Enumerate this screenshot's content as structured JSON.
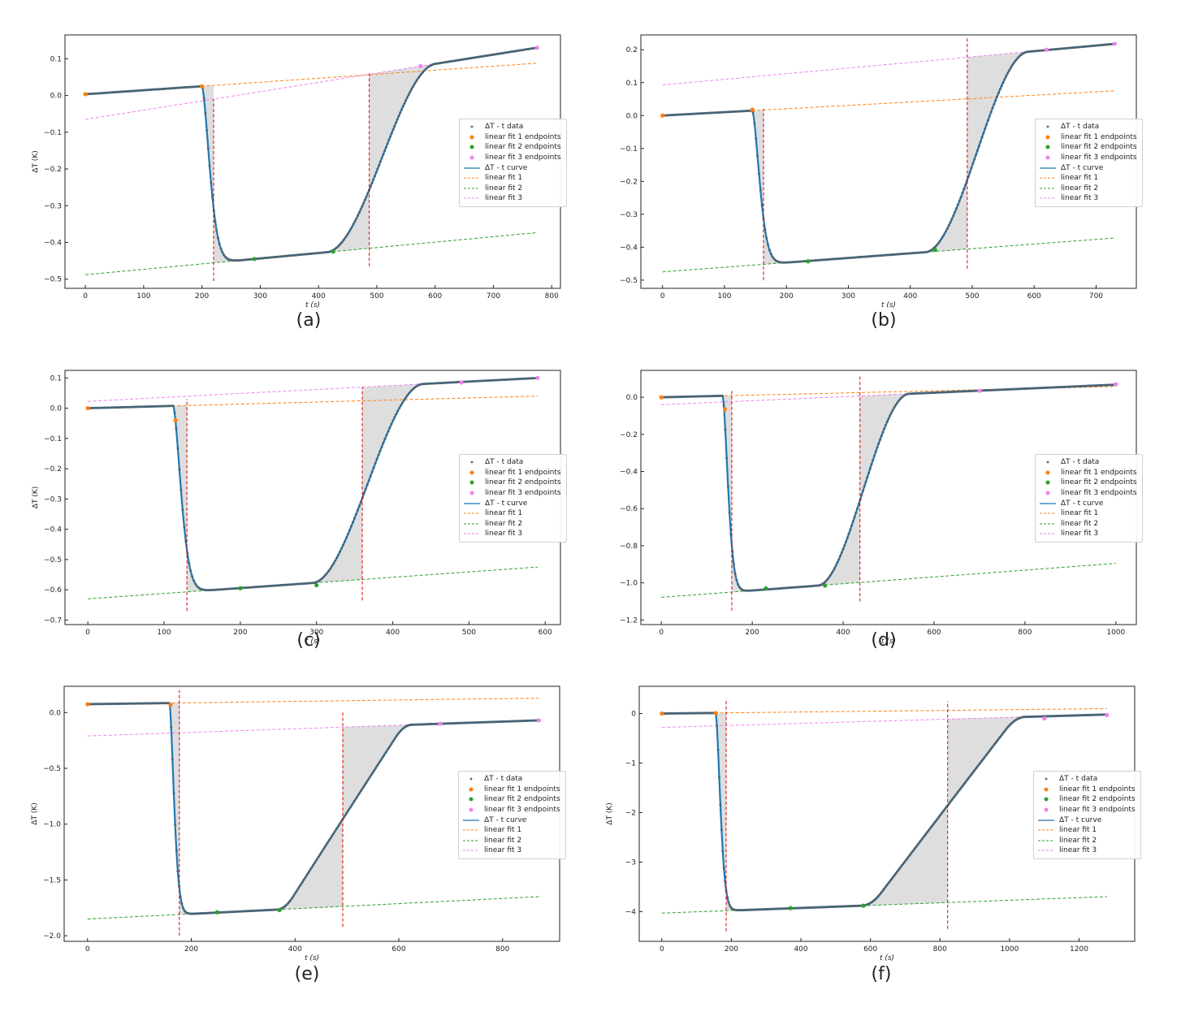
{
  "colors": {
    "data": "#4a6474",
    "curve": "#1f77b4",
    "fit1": "#ff7f0e",
    "fit2": "#2ca02c",
    "fit3": "#ee82ee",
    "vline": "#e00000",
    "shade": "#d3d3d3"
  },
  "legend_labels": {
    "data": "ΔT - t data",
    "fit1_endpoints": "linear fit 1 endpoints",
    "fit2_endpoints": "linear fit 2 endpoints",
    "fit3_endpoints": "linear fit 3 endpoints",
    "curve": "ΔT - t curve",
    "fit1": "linear fit 1",
    "fit2": "linear fit 2",
    "fit3": "linear fit 3"
  },
  "chart_data": [
    {
      "type": "line",
      "caption": "(a)",
      "xlabel": "t (s)",
      "ylabel": "ΔT (K)",
      "xlim": [
        -35,
        815
      ],
      "ylim": [
        -0.525,
        0.165
      ],
      "xticks": [
        0,
        100,
        200,
        300,
        400,
        500,
        600,
        700,
        800
      ],
      "yticks": [
        0.1,
        0.0,
        -0.1,
        -0.2,
        -0.3,
        -0.4,
        -0.5
      ],
      "ytick_labels": [
        "0.1",
        "0.0",
        "−0.1",
        "−0.2",
        "−0.3",
        "−0.4",
        "−0.5"
      ],
      "legend": "center-right",
      "fit1": {
        "slope": 0.000109,
        "intercept": 0.0035,
        "x_end": 775
      },
      "fit2": {
        "slope": 0.000148,
        "intercept": -0.488,
        "x_end": 775
      },
      "fit3": {
        "slope": 0.000252,
        "intercept": -0.065,
        "x_end": 775
      },
      "curve": {
        "t_start": 0,
        "t_end": 775,
        "n_points": 320,
        "t_drop": 200,
        "t_vline1": 220,
        "t_fall_end": 290,
        "t_rise_start": 415,
        "t_vline2": 487,
        "t_rise_end": 600,
        "tau1": 18,
        "tau2": 28,
        "smin": 0.15,
        "shape": "sigmoid"
      },
      "vlines": [
        {
          "x": 220,
          "y_range": [
            -0.505,
            -0.01
          ]
        },
        {
          "x": 487,
          "y_range": [
            -0.465,
            0.06
          ]
        }
      ],
      "endpoints": {
        "fit1": [
          [
            0,
            0.0035
          ],
          [
            200,
            0.025
          ]
        ],
        "fit2": [
          [
            290,
            -0.445
          ],
          [
            425,
            -0.425
          ]
        ],
        "fit3": [
          [
            575,
            0.08
          ],
          [
            775,
            0.13
          ]
        ]
      }
    },
    {
      "type": "line",
      "caption": "(b)",
      "xlabel": "t (s)",
      "ylabel": "",
      "xlim": [
        -35,
        765
      ],
      "ylim": [
        -0.525,
        0.245
      ],
      "xticks": [
        0,
        100,
        200,
        300,
        400,
        500,
        600,
        700
      ],
      "yticks": [
        0.2,
        0.1,
        0.0,
        -0.1,
        -0.2,
        -0.3,
        -0.4,
        -0.5
      ],
      "ytick_labels": [
        "0.2",
        "0.1",
        "0.0",
        "−0.1",
        "−0.2",
        "−0.3",
        "−0.4",
        "−0.5"
      ],
      "legend": "center-right",
      "fit1": {
        "slope": 0.000103,
        "intercept": 0.0,
        "x_end": 730
      },
      "fit2": {
        "slope": 0.000141,
        "intercept": -0.475,
        "x_end": 730
      },
      "fit3": {
        "slope": 0.000171,
        "intercept": 0.093,
        "x_end": 730
      },
      "curve": {
        "t_start": 0,
        "t_end": 730,
        "n_points": 300,
        "t_drop": 145,
        "t_vline1": 163,
        "t_fall_end": 235,
        "t_rise_start": 425,
        "t_vline2": 492,
        "t_rise_end": 590,
        "tau1": 16,
        "tau2": 28,
        "smin": 0.15,
        "shape": "sigmoid"
      },
      "vlines": [
        {
          "x": 163,
          "y_range": [
            -0.5,
            0.02
          ]
        },
        {
          "x": 492,
          "y_range": [
            -0.465,
            0.235
          ]
        }
      ],
      "endpoints": {
        "fit1": [
          [
            0,
            0.0
          ],
          [
            145,
            0.018
          ]
        ],
        "fit2": [
          [
            235,
            -0.443
          ],
          [
            440,
            -0.408
          ]
        ],
        "fit3": [
          [
            620,
            0.2
          ],
          [
            730,
            0.218
          ]
        ]
      }
    },
    {
      "type": "line",
      "caption": "(c)",
      "xlabel": "t (s)",
      "ylabel": "ΔT (K)",
      "xlim": [
        -30,
        620
      ],
      "ylim": [
        -0.715,
        0.125
      ],
      "xticks": [
        0,
        100,
        200,
        300,
        400,
        500,
        600
      ],
      "yticks": [
        0.1,
        0.0,
        -0.1,
        -0.2,
        -0.3,
        -0.4,
        -0.5,
        -0.6,
        -0.7
      ],
      "ytick_labels": [
        "0.1",
        "0.0",
        "−0.1",
        "−0.2",
        "−0.3",
        "−0.4",
        "−0.5",
        "−0.6",
        "−0.7"
      ],
      "legend": "center-right",
      "fit1": {
        "slope": 6.78e-05,
        "intercept": 0.0,
        "x_end": 590
      },
      "fit2": {
        "slope": 0.000178,
        "intercept": -0.63,
        "x_end": 590
      },
      "fit3": {
        "slope": 0.000131,
        "intercept": 0.0225,
        "x_end": 590
      },
      "curve": {
        "t_start": 0,
        "t_end": 590,
        "n_points": 280,
        "t_drop": 112,
        "t_vline1": 130,
        "t_fall_end": 195,
        "t_rise_start": 295,
        "t_vline2": 360,
        "t_rise_end": 440,
        "tau1": 14,
        "tau2": 22,
        "smin": 0.15,
        "shape": "sigmoid"
      },
      "vlines": [
        {
          "x": 130,
          "y_range": [
            -0.67,
            0.03
          ]
        },
        {
          "x": 360,
          "y_range": [
            -0.635,
            0.07
          ]
        }
      ],
      "endpoints": {
        "fit1": [
          [
            0,
            0.0
          ],
          [
            115,
            -0.04
          ]
        ],
        "fit2": [
          [
            200,
            -0.595
          ],
          [
            300,
            -0.585
          ]
        ],
        "fit3": [
          [
            490,
            0.085
          ],
          [
            590,
            0.1
          ]
        ]
      }
    },
    {
      "type": "line",
      "caption": "(d)",
      "xlabel": "t (s)",
      "ylabel": "",
      "xlim": [
        -45,
        1045
      ],
      "ylim": [
        -1.225,
        0.145
      ],
      "xticks": [
        0,
        200,
        400,
        600,
        800,
        1000
      ],
      "yticks": [
        0.0,
        -0.2,
        -0.4,
        -0.6,
        -0.8,
        -1.0,
        -1.2
      ],
      "ytick_labels": [
        "0.0",
        "−0.2",
        "−0.4",
        "−0.6",
        "−0.8",
        "−1.0",
        "−1.2"
      ],
      "legend": "center-right",
      "fit1": {
        "slope": 5.78e-05,
        "intercept": 0.0,
        "x_end": 1000
      },
      "fit2": {
        "slope": 0.000183,
        "intercept": -1.078,
        "x_end": 1000
      },
      "fit3": {
        "slope": 0.000108,
        "intercept": -0.04,
        "x_end": 1000
      },
      "curve": {
        "t_start": 0,
        "t_end": 1000,
        "n_points": 320,
        "t_drop": 135,
        "t_vline1": 155,
        "t_fall_end": 225,
        "t_rise_start": 345,
        "t_vline2": 437,
        "t_rise_end": 545,
        "tau1": 16,
        "tau2": 28,
        "smin": 0.15,
        "shape": "sigmoid"
      },
      "vlines": [
        {
          "x": 155,
          "y_range": [
            -1.15,
            0.04
          ]
        },
        {
          "x": 437,
          "y_range": [
            -1.1,
            0.12
          ]
        }
      ],
      "endpoints": {
        "fit1": [
          [
            0,
            0.0
          ],
          [
            140,
            -0.065
          ]
        ],
        "fit2": [
          [
            230,
            -1.03
          ],
          [
            360,
            -1.015
          ]
        ],
        "fit3": [
          [
            700,
            0.035
          ],
          [
            1000,
            0.07
          ]
        ]
      }
    },
    {
      "type": "line",
      "caption": "(e)",
      "xlabel": "t (s)",
      "ylabel": "ΔT (K)",
      "xlim": [
        -45,
        910
      ],
      "ylim": [
        -2.05,
        0.235
      ],
      "xticks": [
        0,
        200,
        400,
        600,
        800
      ],
      "yticks": [
        0.0,
        -0.5,
        -1.0,
        -1.5,
        -2.0
      ],
      "ytick_labels": [
        "0.0",
        "−0.5",
        "−1.0",
        "−1.5",
        "−2.0"
      ],
      "legend": "center-right",
      "fit1": {
        "slope": 6.21e-05,
        "intercept": 0.075,
        "x_end": 870
      },
      "fit2": {
        "slope": 0.00023,
        "intercept": -1.85,
        "x_end": 870
      },
      "fit3": {
        "slope": 0.000161,
        "intercept": -0.21,
        "x_end": 870
      },
      "curve": {
        "t_start": 0,
        "t_end": 870,
        "n_points": 340,
        "t_drop": 158,
        "t_vline1": 177,
        "t_fall_end": 255,
        "t_rise_start": 365,
        "t_vline2": 492,
        "t_rise_end": 625,
        "tau1": 12,
        "tau2": 35,
        "smin": 0.08,
        "shape": "linear"
      },
      "vlines": [
        {
          "x": 177,
          "y_range": [
            -2.0,
            0.2
          ]
        },
        {
          "x": 492,
          "y_range": [
            -1.92,
            0.0
          ]
        }
      ],
      "endpoints": {
        "fit1": [
          [
            0,
            0.075
          ],
          [
            160,
            0.07
          ]
        ],
        "fit2": [
          [
            250,
            -1.79
          ],
          [
            370,
            -1.77
          ]
        ],
        "fit3": [
          [
            680,
            -0.1
          ],
          [
            870,
            -0.07
          ]
        ]
      }
    },
    {
      "type": "line",
      "caption": "(f)",
      "xlabel": "t (s)",
      "ylabel": "ΔT (K)",
      "xlim": [
        -65,
        1360
      ],
      "ylim": [
        -4.6,
        0.55
      ],
      "xticks": [
        0,
        200,
        400,
        600,
        800,
        1000,
        1200
      ],
      "yticks": [
        0,
        -1,
        -2,
        -3,
        -4
      ],
      "ytick_labels": [
        "0",
        "−1",
        "−2",
        "−3",
        "−4"
      ],
      "legend": "center-right",
      "fit1": {
        "slope": 7.81e-05,
        "intercept": 0.0,
        "x_end": 1280
      },
      "fit2": {
        "slope": 0.00026,
        "intercept": -4.03,
        "x_end": 1280
      },
      "fit3": {
        "slope": 0.000203,
        "intercept": -0.28,
        "x_end": 1280
      },
      "curve": {
        "t_start": 0,
        "t_end": 1280,
        "n_points": 380,
        "t_drop": 155,
        "t_vline1": 185,
        "t_fall_end": 365,
        "t_rise_start": 575,
        "t_vline2": 822,
        "t_rise_end": 1045,
        "tau1": 18,
        "tau2": 40,
        "smin": 0.07,
        "shape": "linear"
      },
      "vlines": [
        {
          "x": 185,
          "y_range": [
            -4.4,
            0.3
          ]
        },
        {
          "x": 822,
          "y_range": [
            -4.35,
            0.25
          ]
        }
      ],
      "endpoints": {
        "fit1": [
          [
            0,
            0.0
          ],
          [
            155,
            0.01
          ]
        ],
        "fit2": [
          [
            370,
            -3.93
          ],
          [
            580,
            -3.88
          ]
        ],
        "fit3": [
          [
            1100,
            -0.1
          ],
          [
            1280,
            -0.03
          ]
        ]
      }
    }
  ]
}
